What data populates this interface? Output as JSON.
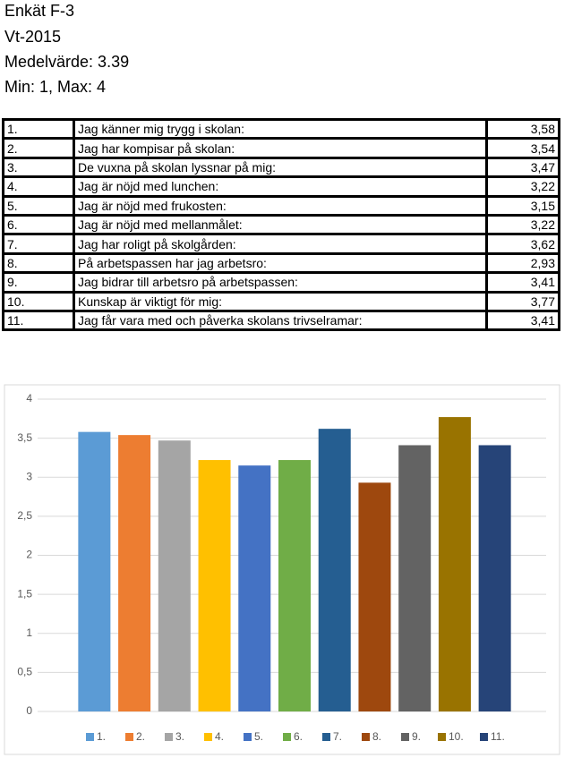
{
  "header": {
    "lines": [
      "Enkät F-3",
      "Vt-2015",
      "Medelvärde: 3.39",
      "Min: 1, Max: 4"
    ]
  },
  "table": {
    "rows": [
      [
        "1.",
        "Jag känner mig trygg i skolan:",
        "3,58"
      ],
      [
        "2.",
        "Jag har kompisar på skolan:",
        "3,54"
      ],
      [
        "3.",
        "De vuxna på skolan lyssnar på mig:",
        "3,47"
      ],
      [
        "4.",
        "Jag är nöjd med lunchen:",
        "3,22"
      ],
      [
        "5.",
        "Jag är nöjd med frukosten:",
        "3,15"
      ],
      [
        "6.",
        "Jag är nöjd med mellanmålet:",
        "3,22"
      ],
      [
        "7.",
        "Jag har roligt på skolgården:",
        "3,62"
      ],
      [
        "8.",
        "På arbetspassen har jag arbetsro:",
        "2,93"
      ],
      [
        "9.",
        "Jag bidrar till arbetsro på arbetspassen:",
        "3,41"
      ],
      [
        "10.",
        "Kunskap är viktigt för mig:",
        "3,77"
      ],
      [
        "11.",
        "Jag får vara med och påverka skolans trivselramar:",
        "3,41"
      ]
    ]
  },
  "chart_data": {
    "type": "bar",
    "categories": [
      "1.",
      "2.",
      "3.",
      "4.",
      "5.",
      "6.",
      "7.",
      "8.",
      "9.",
      "10.",
      "11."
    ],
    "values": [
      3.58,
      3.54,
      3.47,
      3.22,
      3.15,
      3.22,
      3.62,
      2.93,
      3.41,
      3.77,
      3.41
    ],
    "colors": [
      "#5b9bd5",
      "#ed7d31",
      "#a5a5a5",
      "#ffc000",
      "#4472c4",
      "#70ad47",
      "#255e91",
      "#9e480e",
      "#636363",
      "#997300",
      "#264478"
    ],
    "ylim": [
      0,
      4
    ],
    "yticks": [
      0,
      {
        "value": 0.5,
        "label": "0,5"
      },
      1,
      {
        "value": 1.5,
        "label": "1,5"
      },
      2,
      {
        "value": 2.5,
        "label": "2,5"
      },
      3,
      {
        "value": 3.5,
        "label": "3,5"
      },
      4
    ],
    "grid": true,
    "legend": "bottom"
  }
}
